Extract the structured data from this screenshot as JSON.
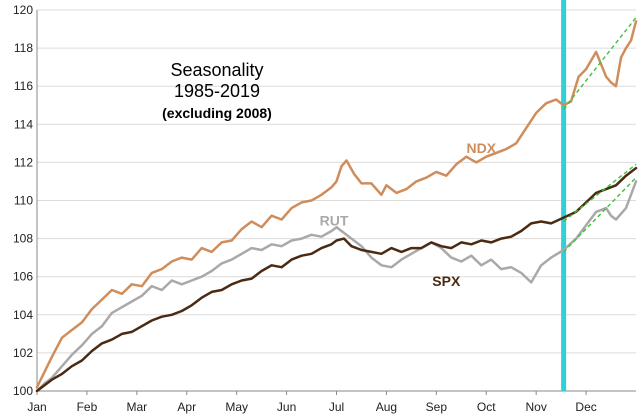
{
  "chart_data": {
    "type": "line",
    "title": "Seasonality",
    "subtitle": "1985-2019",
    "note": "(excluding 2008)",
    "xlabel": "",
    "ylabel": "",
    "ylim": [
      100,
      120
    ],
    "y_ticks": [
      100,
      102,
      104,
      106,
      108,
      110,
      112,
      114,
      116,
      118,
      120
    ],
    "y_tick_labels": [
      "100",
      "102",
      "104",
      "106",
      "108",
      "110",
      "112",
      "114",
      "116",
      "118",
      "120"
    ],
    "x_ticks": [
      "Jan",
      "Feb",
      "Mar",
      "Apr",
      "May",
      "Jun",
      "Jul",
      "Aug",
      "Sep",
      "Oct",
      "Nov",
      "Dec"
    ],
    "xlim": [
      0,
      12
    ],
    "grid": true,
    "marker_line": {
      "x": 10.55,
      "color": "#2fd0d8"
    },
    "series": [
      {
        "name": "NDX",
        "color": "#d08d5c",
        "label_at": [
          8.9,
          112.5
        ],
        "points": [
          [
            0,
            100.2
          ],
          [
            0.15,
            101.0
          ],
          [
            0.3,
            101.8
          ],
          [
            0.5,
            102.8
          ],
          [
            0.7,
            103.2
          ],
          [
            0.9,
            103.6
          ],
          [
            1.1,
            104.3
          ],
          [
            1.3,
            104.8
          ],
          [
            1.5,
            105.3
          ],
          [
            1.7,
            105.1
          ],
          [
            1.9,
            105.6
          ],
          [
            2.1,
            105.5
          ],
          [
            2.3,
            106.2
          ],
          [
            2.5,
            106.4
          ],
          [
            2.7,
            106.8
          ],
          [
            2.9,
            107.0
          ],
          [
            3.1,
            106.9
          ],
          [
            3.3,
            107.5
          ],
          [
            3.5,
            107.3
          ],
          [
            3.7,
            107.8
          ],
          [
            3.9,
            107.9
          ],
          [
            4.1,
            108.5
          ],
          [
            4.3,
            108.9
          ],
          [
            4.5,
            108.6
          ],
          [
            4.7,
            109.2
          ],
          [
            4.9,
            109.0
          ],
          [
            5.1,
            109.6
          ],
          [
            5.3,
            109.9
          ],
          [
            5.5,
            110.0
          ],
          [
            5.7,
            110.3
          ],
          [
            5.9,
            110.7
          ],
          [
            6.0,
            111.0
          ],
          [
            6.1,
            111.8
          ],
          [
            6.2,
            112.1
          ],
          [
            6.35,
            111.4
          ],
          [
            6.5,
            110.9
          ],
          [
            6.7,
            110.9
          ],
          [
            6.9,
            110.3
          ],
          [
            7.0,
            110.8
          ],
          [
            7.2,
            110.4
          ],
          [
            7.4,
            110.6
          ],
          [
            7.6,
            111.0
          ],
          [
            7.8,
            111.2
          ],
          [
            8.0,
            111.5
          ],
          [
            8.2,
            111.3
          ],
          [
            8.4,
            111.9
          ],
          [
            8.6,
            112.3
          ],
          [
            8.8,
            112.0
          ],
          [
            9.0,
            112.3
          ],
          [
            9.2,
            112.5
          ],
          [
            9.4,
            112.7
          ],
          [
            9.6,
            113.0
          ],
          [
            9.8,
            113.8
          ],
          [
            10.0,
            114.6
          ],
          [
            10.2,
            115.1
          ],
          [
            10.4,
            115.3
          ],
          [
            10.55,
            115.0
          ],
          [
            10.7,
            115.2
          ],
          [
            10.85,
            116.5
          ],
          [
            11.0,
            116.9
          ],
          [
            11.2,
            117.8
          ],
          [
            11.4,
            116.5
          ],
          [
            11.5,
            116.2
          ],
          [
            11.6,
            116.0
          ],
          [
            11.7,
            117.5
          ],
          [
            11.8,
            118.0
          ],
          [
            11.9,
            118.4
          ],
          [
            12.0,
            119.4
          ]
        ]
      },
      {
        "name": "RUT",
        "color": "#a9a9a9",
        "label_at": [
          5.95,
          108.7
        ],
        "points": [
          [
            0,
            100.0
          ],
          [
            0.15,
            100.4
          ],
          [
            0.3,
            100.7
          ],
          [
            0.5,
            101.3
          ],
          [
            0.7,
            101.9
          ],
          [
            0.9,
            102.4
          ],
          [
            1.1,
            103.0
          ],
          [
            1.3,
            103.4
          ],
          [
            1.5,
            104.1
          ],
          [
            1.7,
            104.4
          ],
          [
            1.9,
            104.7
          ],
          [
            2.1,
            105.0
          ],
          [
            2.3,
            105.5
          ],
          [
            2.5,
            105.3
          ],
          [
            2.7,
            105.8
          ],
          [
            2.9,
            105.6
          ],
          [
            3.1,
            105.8
          ],
          [
            3.3,
            106.0
          ],
          [
            3.5,
            106.3
          ],
          [
            3.7,
            106.7
          ],
          [
            3.9,
            106.9
          ],
          [
            4.1,
            107.2
          ],
          [
            4.3,
            107.5
          ],
          [
            4.5,
            107.4
          ],
          [
            4.7,
            107.7
          ],
          [
            4.9,
            107.6
          ],
          [
            5.1,
            107.9
          ],
          [
            5.3,
            108.0
          ],
          [
            5.5,
            108.2
          ],
          [
            5.7,
            108.1
          ],
          [
            5.9,
            108.4
          ],
          [
            6.0,
            108.6
          ],
          [
            6.15,
            108.3
          ],
          [
            6.3,
            108.0
          ],
          [
            6.5,
            107.6
          ],
          [
            6.7,
            107.0
          ],
          [
            6.9,
            106.6
          ],
          [
            7.1,
            106.5
          ],
          [
            7.3,
            106.9
          ],
          [
            7.5,
            107.2
          ],
          [
            7.7,
            107.5
          ],
          [
            7.9,
            107.8
          ],
          [
            8.1,
            107.5
          ],
          [
            8.3,
            107.0
          ],
          [
            8.5,
            106.8
          ],
          [
            8.7,
            107.1
          ],
          [
            8.9,
            106.6
          ],
          [
            9.1,
            106.9
          ],
          [
            9.3,
            106.4
          ],
          [
            9.5,
            106.5
          ],
          [
            9.7,
            106.2
          ],
          [
            9.9,
            105.7
          ],
          [
            10.1,
            106.6
          ],
          [
            10.3,
            107.0
          ],
          [
            10.55,
            107.4
          ],
          [
            10.8,
            108.0
          ],
          [
            11.0,
            108.7
          ],
          [
            11.2,
            109.4
          ],
          [
            11.4,
            109.6
          ],
          [
            11.5,
            109.2
          ],
          [
            11.6,
            109.0
          ],
          [
            11.8,
            109.6
          ],
          [
            12.0,
            111.0
          ]
        ]
      },
      {
        "name": "SPX",
        "color": "#4a2a12",
        "label_at": [
          8.2,
          105.5
        ],
        "points": [
          [
            0,
            100.0
          ],
          [
            0.15,
            100.3
          ],
          [
            0.3,
            100.6
          ],
          [
            0.5,
            100.9
          ],
          [
            0.7,
            101.3
          ],
          [
            0.9,
            101.6
          ],
          [
            1.1,
            102.1
          ],
          [
            1.3,
            102.5
          ],
          [
            1.5,
            102.7
          ],
          [
            1.7,
            103.0
          ],
          [
            1.9,
            103.1
          ],
          [
            2.1,
            103.4
          ],
          [
            2.3,
            103.7
          ],
          [
            2.5,
            103.9
          ],
          [
            2.7,
            104.0
          ],
          [
            2.9,
            104.2
          ],
          [
            3.1,
            104.5
          ],
          [
            3.3,
            104.9
          ],
          [
            3.5,
            105.2
          ],
          [
            3.7,
            105.3
          ],
          [
            3.9,
            105.6
          ],
          [
            4.1,
            105.8
          ],
          [
            4.3,
            105.9
          ],
          [
            4.5,
            106.3
          ],
          [
            4.7,
            106.6
          ],
          [
            4.9,
            106.5
          ],
          [
            5.1,
            106.9
          ],
          [
            5.3,
            107.1
          ],
          [
            5.5,
            107.2
          ],
          [
            5.7,
            107.5
          ],
          [
            5.9,
            107.7
          ],
          [
            6.0,
            107.9
          ],
          [
            6.15,
            108.0
          ],
          [
            6.3,
            107.6
          ],
          [
            6.5,
            107.4
          ],
          [
            6.7,
            107.3
          ],
          [
            6.9,
            107.2
          ],
          [
            7.1,
            107.5
          ],
          [
            7.3,
            107.3
          ],
          [
            7.5,
            107.5
          ],
          [
            7.7,
            107.5
          ],
          [
            7.9,
            107.8
          ],
          [
            8.1,
            107.6
          ],
          [
            8.3,
            107.5
          ],
          [
            8.5,
            107.8
          ],
          [
            8.7,
            107.7
          ],
          [
            8.9,
            107.9
          ],
          [
            9.1,
            107.8
          ],
          [
            9.3,
            108.0
          ],
          [
            9.5,
            108.1
          ],
          [
            9.7,
            108.4
          ],
          [
            9.9,
            108.8
          ],
          [
            10.1,
            108.9
          ],
          [
            10.3,
            108.8
          ],
          [
            10.55,
            109.1
          ],
          [
            10.8,
            109.4
          ],
          [
            11.0,
            109.9
          ],
          [
            11.2,
            110.4
          ],
          [
            11.4,
            110.6
          ],
          [
            11.6,
            110.8
          ],
          [
            11.8,
            111.3
          ],
          [
            12.0,
            111.7
          ]
        ]
      }
    ],
    "trend_lines": [
      {
        "color": "#3ac23a",
        "from": [
          10.55,
          114.8
        ],
        "to": [
          12.0,
          119.6
        ]
      },
      {
        "color": "#3ac23a",
        "from": [
          10.55,
          108.9
        ],
        "to": [
          12.0,
          111.9
        ]
      },
      {
        "color": "#3ac23a",
        "from": [
          10.55,
          107.3
        ],
        "to": [
          12.0,
          111.2
        ]
      }
    ]
  }
}
